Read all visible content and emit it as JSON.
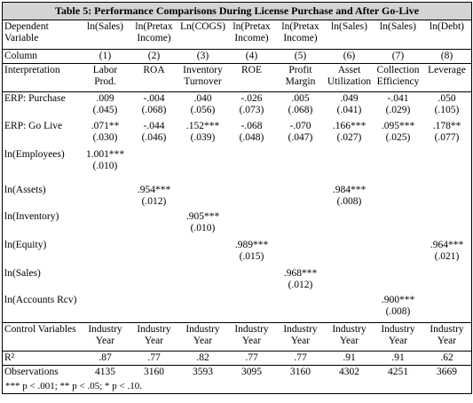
{
  "table": {
    "title": "Table 5: Performance Comparisons During License Purchase and After Go-Live",
    "rows": [
      {
        "label": "Dependent Variable",
        "cells": [
          "ln(Sales)",
          "ln(Pretax Income)",
          "Ln(COGS)",
          "ln(Pretax Income)",
          "ln(Pretax Income)",
          "ln(Sales)",
          "ln(Sales)",
          "ln(Debt)"
        ]
      },
      {
        "label": "Column",
        "cells": [
          "(1)",
          "(2)",
          "(3)",
          "(4)",
          "(5)",
          "(6)",
          "(7)",
          "(8)"
        ]
      },
      {
        "label": "Interpretation",
        "cells": [
          "Labor Prod.",
          "ROA",
          "Inventory Turnover",
          "ROE",
          "Profit Margin",
          "Asset Utilization",
          "Collection Efficiency",
          "Leverage"
        ]
      },
      {
        "label": "ERP: Purchase",
        "cells": [
          [
            ".009",
            "(.045)"
          ],
          [
            "-.004",
            "(.068)"
          ],
          [
            ".040",
            "(.056)"
          ],
          [
            "-.026",
            "(.073)"
          ],
          [
            ".005",
            "(.068)"
          ],
          [
            ".049",
            "(.041)"
          ],
          [
            "-.041",
            "(.029)"
          ],
          [
            ".050",
            "(.105)"
          ]
        ]
      },
      {
        "label": "ERP: Go Live",
        "cells": [
          [
            ".071**",
            "(.030)"
          ],
          [
            "-.044",
            "(.046)"
          ],
          [
            ".152***",
            "(.039)"
          ],
          [
            "-.068",
            "(.048)"
          ],
          [
            "-.070",
            "(.047)"
          ],
          [
            ".166***",
            "(.027)"
          ],
          [
            ".095***",
            "(.025)"
          ],
          [
            ".178**",
            "(.077)"
          ]
        ]
      },
      {
        "label": "ln(Employees)",
        "cells": [
          [
            "1.001***",
            "(.010)"
          ],
          null,
          null,
          null,
          null,
          null,
          null,
          null
        ]
      },
      {
        "label": "ln(Assets)",
        "cells": [
          null,
          [
            ".954***",
            "(.012)"
          ],
          null,
          null,
          null,
          [
            ".984***",
            "(.008)"
          ],
          null,
          null
        ]
      },
      {
        "label": "ln(Inventory)",
        "cells": [
          null,
          null,
          [
            ".905***",
            "(.010)"
          ],
          null,
          null,
          null,
          null,
          null
        ]
      },
      {
        "label": "ln(Equity)",
        "cells": [
          null,
          null,
          null,
          [
            ".989***",
            "(.015)"
          ],
          null,
          null,
          null,
          [
            ".964***",
            "(.021)"
          ]
        ]
      },
      {
        "label": "ln(Sales)",
        "cells": [
          null,
          null,
          null,
          null,
          [
            ".968***",
            "(.012)"
          ],
          null,
          null,
          null
        ]
      },
      {
        "label": "ln(Accounts Rcv)",
        "cells": [
          null,
          null,
          null,
          null,
          null,
          null,
          [
            ".900***",
            "(.008)"
          ],
          null
        ]
      },
      {
        "label": "Control Variables",
        "cells": [
          [
            "Industry",
            "Year"
          ],
          [
            "Industry",
            "Year"
          ],
          [
            "Industry",
            "Year"
          ],
          [
            "Industry",
            "Year"
          ],
          [
            "Industry",
            "Year"
          ],
          [
            "Industry",
            "Year"
          ],
          [
            "Industry",
            "Year"
          ],
          [
            "Industry",
            "Year"
          ]
        ]
      },
      {
        "label": "R²",
        "cells": [
          ".87",
          ".77",
          ".82",
          ".77",
          ".77",
          ".91",
          ".91",
          ".62"
        ]
      },
      {
        "label": "Observations",
        "cells": [
          "4135",
          "3160",
          "3593",
          "3095",
          "3160",
          "4302",
          "4251",
          "3669"
        ]
      }
    ],
    "footnote": "*** p < .001; ** p < .05; * p < .10."
  }
}
